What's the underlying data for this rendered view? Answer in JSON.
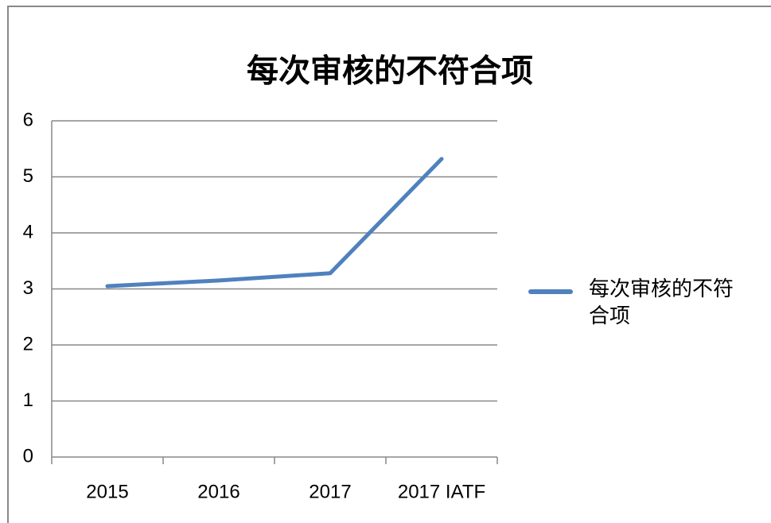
{
  "chart_data": {
    "type": "line",
    "title": "每次审核的不符合项",
    "categories": [
      "2015",
      "2016",
      "2017",
      "2017 IATF"
    ],
    "series": [
      {
        "name": "每次审核的不符合项",
        "color": "#4f81bd",
        "values": [
          3.05,
          3.15,
          3.28,
          5.32
        ]
      }
    ],
    "ylim": [
      0,
      6
    ],
    "yticks": [
      0,
      1,
      2,
      3,
      4,
      5,
      6
    ],
    "grid": true,
    "legend": "right"
  }
}
